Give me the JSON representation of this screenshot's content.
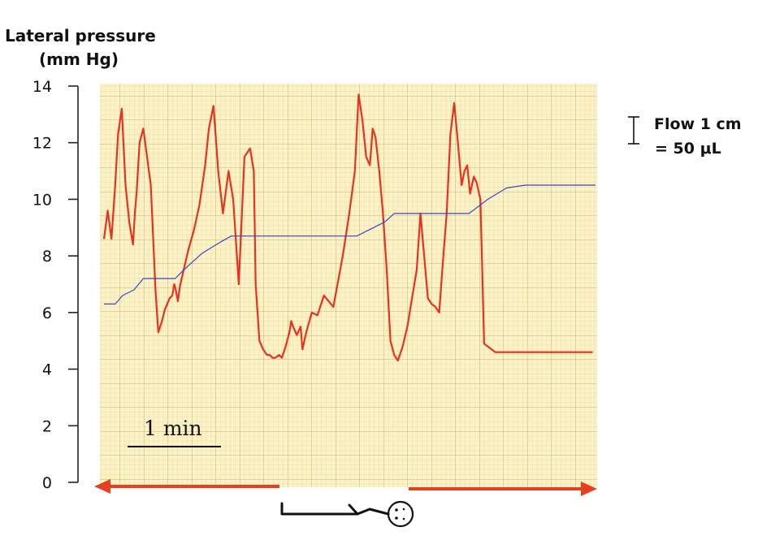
{
  "chart_data": {
    "type": "line",
    "ylabel_line1": "Lateral pressure",
    "ylabel_line2": "(mm Hg)",
    "ylim": [
      0,
      14
    ],
    "yticks": [
      {
        "v": 0,
        "label": "0"
      },
      {
        "v": 2,
        "label": "2"
      },
      {
        "v": 4,
        "label": "4"
      },
      {
        "v": 6,
        "label": "6"
      },
      {
        "v": 8,
        "label": "8"
      },
      {
        "v": 10,
        "label": "10"
      },
      {
        "v": 12,
        "label": "12"
      },
      {
        "v": 14,
        "label": "14"
      }
    ],
    "xlim": [
      0,
      5.25
    ],
    "x_unit": "min",
    "grid": true,
    "scale_bar_label": "1 min",
    "flow_note_line1": "Flow 1 cm",
    "flow_note_line2": "= 50 μL",
    "series": [
      {
        "color": "#e8321e",
        "x": [
          0.0,
          0.04,
          0.08,
          0.12,
          0.15,
          0.19,
          0.23,
          0.27,
          0.31,
          0.33,
          0.35,
          0.38,
          0.42,
          0.46,
          0.5,
          0.55,
          0.58,
          0.62,
          0.65,
          0.7,
          0.73,
          0.75,
          0.76,
          0.79,
          0.81,
          0.85,
          0.9,
          0.96,
          1.02,
          1.08,
          1.12,
          1.17,
          1.22,
          1.27,
          1.33,
          1.38,
          1.44,
          1.5,
          1.56,
          1.6,
          1.62,
          1.66,
          1.7,
          1.74,
          1.77,
          1.8,
          1.83,
          1.87,
          1.9,
          1.94,
          1.98,
          2.0,
          2.02,
          2.06,
          2.1,
          2.12,
          2.16,
          2.22,
          2.28,
          2.35,
          2.45,
          2.55,
          2.62,
          2.68,
          2.72,
          2.76,
          2.8,
          2.84,
          2.87,
          2.9,
          2.94,
          2.98,
          3.02,
          3.06,
          3.1,
          3.14,
          3.19,
          3.24,
          3.29,
          3.34,
          3.38,
          3.42,
          3.46,
          3.5,
          3.54,
          3.58,
          3.62,
          3.66,
          3.7,
          3.74,
          3.78,
          3.82,
          3.85,
          3.88,
          3.91,
          3.95,
          3.98,
          4.02,
          4.06,
          4.1,
          4.14,
          4.18,
          4.22,
          4.26,
          4.3,
          4.34,
          4.38,
          4.42,
          4.46,
          4.5,
          4.54,
          4.58,
          4.62,
          4.66,
          4.7,
          4.74,
          4.78,
          4.82,
          4.86,
          4.9,
          4.94,
          4.98,
          5.02,
          5.06,
          5.1,
          5.14,
          5.18,
          5.22
        ],
        "y": [
          8.6,
          9.6,
          8.6,
          10.5,
          12.3,
          13.2,
          10.5,
          9.2,
          8.4,
          9.5,
          10.3,
          12.0,
          12.5,
          11.5,
          10.5,
          6.8,
          5.3,
          5.7,
          6.1,
          6.5,
          6.6,
          7.0,
          6.9,
          6.4,
          6.9,
          7.5,
          8.2,
          8.9,
          9.8,
          11.2,
          12.5,
          13.3,
          11.0,
          9.5,
          11.0,
          10.0,
          7.0,
          11.5,
          11.8,
          11.0,
          7.0,
          5.0,
          4.7,
          4.5,
          4.5,
          4.4,
          4.4,
          4.5,
          4.4,
          4.8,
          5.3,
          5.7,
          5.5,
          5.2,
          5.5,
          4.7,
          5.3,
          6.0,
          5.9,
          6.6,
          6.2,
          8.0,
          9.5,
          11.0,
          13.7,
          12.8,
          11.5,
          11.2,
          12.5,
          12.2,
          11.0,
          9.5,
          7.5,
          5.0,
          4.5,
          4.3,
          4.8,
          5.5,
          6.5,
          7.5,
          9.5,
          8.0,
          6.5,
          6.3,
          6.2,
          6.0,
          7.8,
          9.5,
          12.3,
          13.4,
          12.0,
          10.5,
          11.0,
          11.2,
          10.2,
          10.8,
          10.6,
          10.0,
          4.9,
          4.8,
          4.7,
          4.6,
          4.6,
          4.6,
          4.6,
          4.6,
          4.6,
          4.6,
          4.6,
          4.6,
          4.6,
          4.6,
          4.6,
          4.6,
          4.6,
          4.6,
          4.6,
          4.6,
          4.6,
          4.6,
          4.6,
          4.6,
          4.6,
          4.6,
          4.6,
          4.6,
          4.6,
          4.6
        ]
      },
      {
        "color": "#3a46c8",
        "x": [
          0.0,
          0.12,
          0.2,
          0.32,
          0.42,
          0.52,
          0.7,
          0.76,
          0.85,
          1.05,
          1.25,
          1.36,
          1.5,
          1.6,
          1.9,
          2.2,
          2.5,
          2.7,
          3.0,
          3.1,
          3.2,
          3.45,
          3.7,
          3.9,
          4.1,
          4.3,
          4.5,
          5.25
        ],
        "y": [
          6.3,
          6.3,
          6.6,
          6.8,
          7.2,
          7.2,
          7.2,
          7.2,
          7.5,
          8.1,
          8.5,
          8.7,
          8.7,
          8.7,
          8.7,
          8.7,
          8.7,
          8.7,
          9.2,
          9.5,
          9.5,
          9.5,
          9.5,
          9.5,
          10.0,
          10.4,
          10.5,
          10.5
        ]
      }
    ]
  }
}
